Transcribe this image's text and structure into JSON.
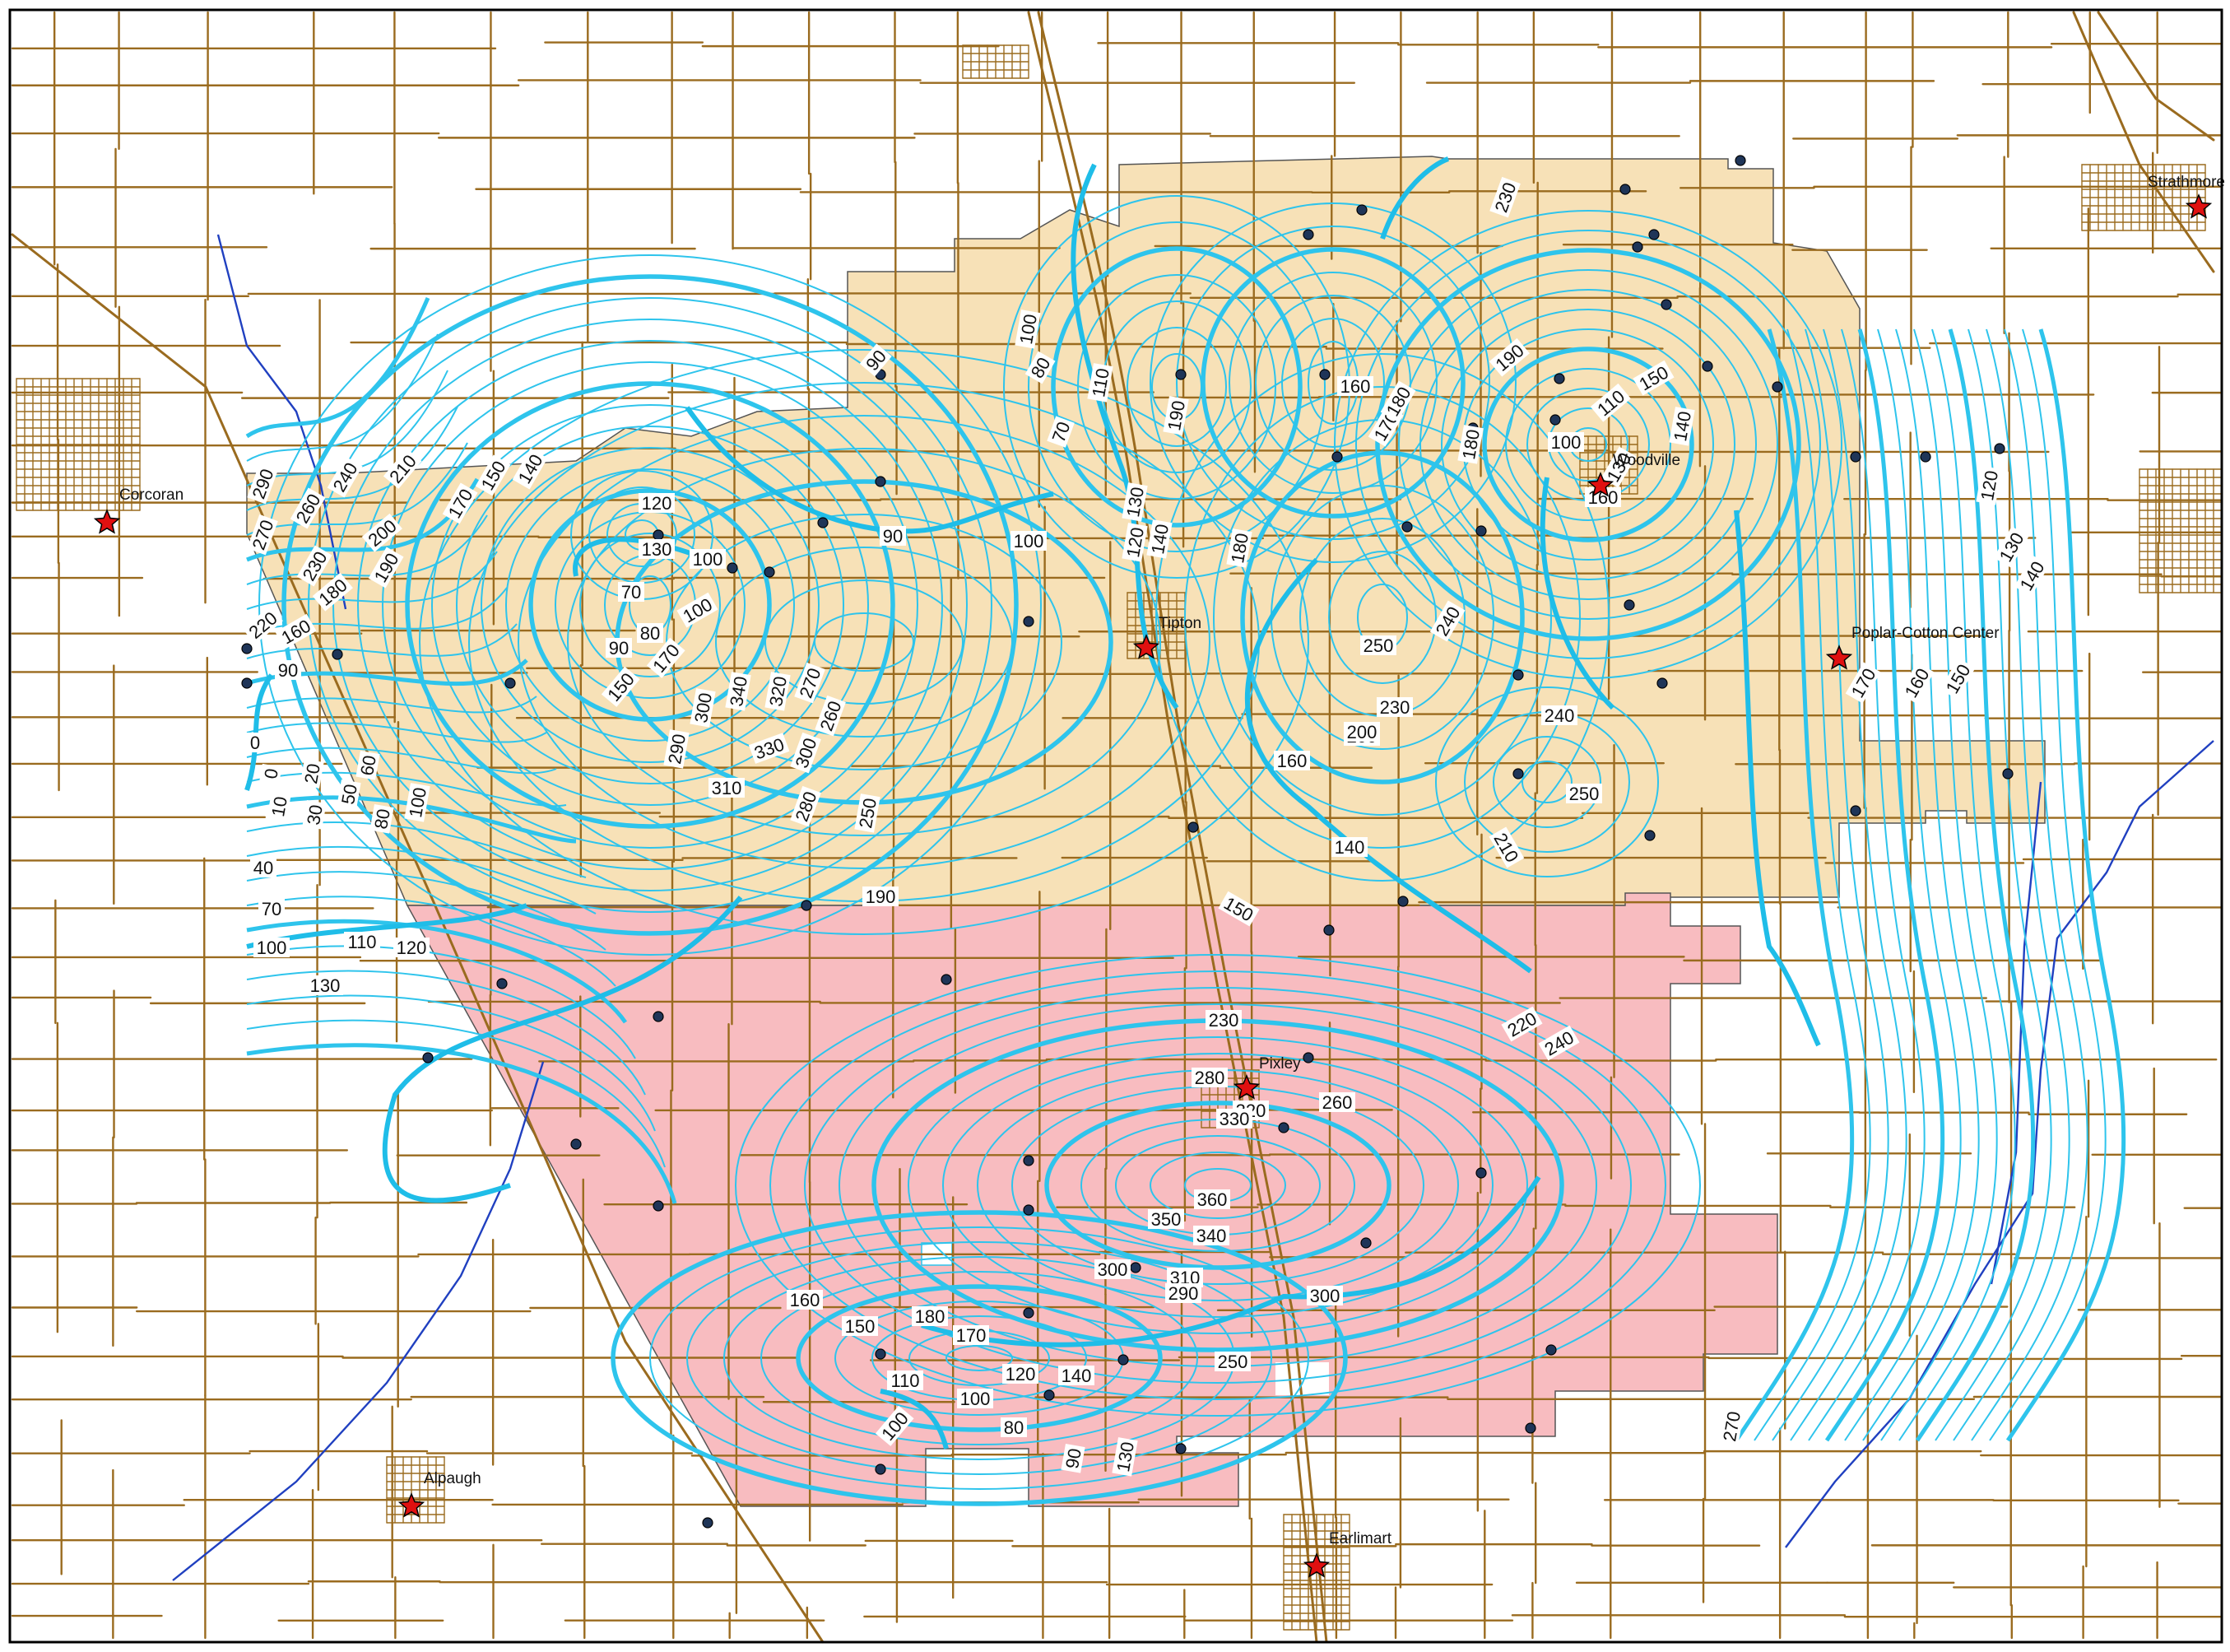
{
  "colors": {
    "road": "#9a6b1f",
    "contour": "#2ec4ec",
    "contour_index": "#1fbde8",
    "stream": "#2040c0",
    "zone_tan": "#f7e1b7",
    "zone_pink": "#f8bcc0",
    "well_fill": "#1f3558",
    "town_star": "#e01010",
    "frame": "#000000"
  },
  "towns": [
    {
      "name": "Corcoran"
    },
    {
      "name": "Tipton"
    },
    {
      "name": "Woodville"
    },
    {
      "name": "Poplar-Cotton Center"
    },
    {
      "name": "Strathmore"
    },
    {
      "name": "Pixley"
    },
    {
      "name": "Alpaugh"
    },
    {
      "name": "Earlimart"
    }
  ],
  "contour_labels": [
    "290",
    "270",
    "260",
    "240",
    "230",
    "210",
    "200",
    "190",
    "180",
    "170",
    "150",
    "140",
    "220",
    "160",
    "90",
    "0",
    "0",
    "10",
    "20",
    "30",
    "50",
    "60",
    "80",
    "100",
    "40",
    "70",
    "100",
    "110",
    "120",
    "130",
    "120",
    "130",
    "70",
    "100",
    "90",
    "80",
    "100",
    "150",
    "170",
    "290",
    "300",
    "340",
    "320",
    "330",
    "310",
    "270",
    "260",
    "300",
    "280",
    "250",
    "90",
    "80",
    "70",
    "100",
    "110",
    "90",
    "100",
    "130",
    "120",
    "140",
    "190",
    "180",
    "160",
    "170",
    "180",
    "230",
    "180",
    "110",
    "100",
    "130",
    "150",
    "140",
    "160",
    "120",
    "130",
    "140",
    "160",
    "150",
    "170",
    "250",
    "240",
    "230",
    "200",
    "160",
    "140",
    "150",
    "210",
    "240",
    "250",
    "190",
    "230",
    "280",
    "320",
    "330",
    "260",
    "220",
    "240",
    "200",
    "190",
    "360",
    "350",
    "340",
    "300",
    "310",
    "290",
    "300",
    "160",
    "150",
    "180",
    "170",
    "250",
    "110",
    "120",
    "100",
    "140",
    "80",
    "100",
    "90",
    "130",
    "270"
  ]
}
